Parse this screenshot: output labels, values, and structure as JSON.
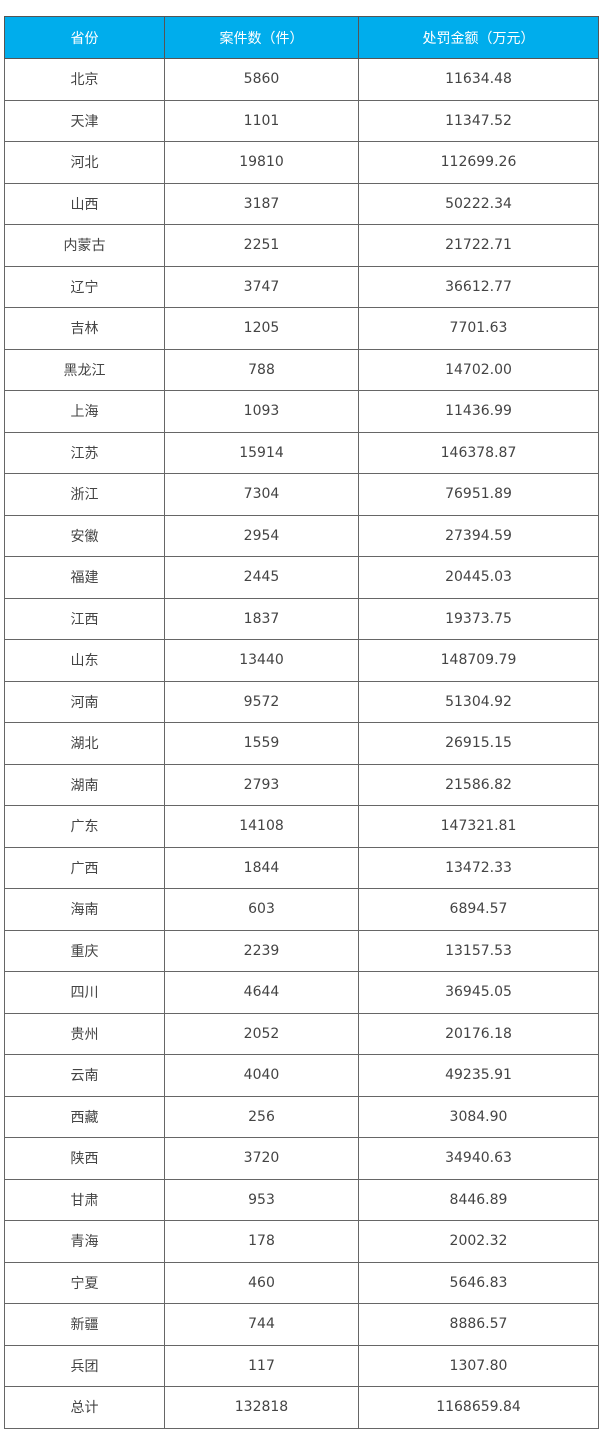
{
  "colors": {
    "header_bg": "#00adec",
    "header_text": "#ffffff",
    "border": "#666666"
  },
  "headers": [
    "省份",
    "案件数（件）",
    "处罚金额（万元）"
  ],
  "rows": [
    [
      "北京",
      "5860",
      "11634.48"
    ],
    [
      "天津",
      "1101",
      "11347.52"
    ],
    [
      "河北",
      "19810",
      "112699.26"
    ],
    [
      "山西",
      "3187",
      "50222.34"
    ],
    [
      "内蒙古",
      "2251",
      "21722.71"
    ],
    [
      "辽宁",
      "3747",
      "36612.77"
    ],
    [
      "吉林",
      "1205",
      "7701.63"
    ],
    [
      "黑龙江",
      "788",
      "14702.00"
    ],
    [
      "上海",
      "1093",
      "11436.99"
    ],
    [
      "江苏",
      "15914",
      "146378.87"
    ],
    [
      "浙江",
      "7304",
      "76951.89"
    ],
    [
      "安徽",
      "2954",
      "27394.59"
    ],
    [
      "福建",
      "2445",
      "20445.03"
    ],
    [
      "江西",
      "1837",
      "19373.75"
    ],
    [
      "山东",
      "13440",
      "148709.79"
    ],
    [
      "河南",
      "9572",
      "51304.92"
    ],
    [
      "湖北",
      "1559",
      "26915.15"
    ],
    [
      "湖南",
      "2793",
      "21586.82"
    ],
    [
      "广东",
      "14108",
      "147321.81"
    ],
    [
      "广西",
      "1844",
      "13472.33"
    ],
    [
      "海南",
      "603",
      "6894.57"
    ],
    [
      "重庆",
      "2239",
      "13157.53"
    ],
    [
      "四川",
      "4644",
      "36945.05"
    ],
    [
      "贵州",
      "2052",
      "20176.18"
    ],
    [
      "云南",
      "4040",
      "49235.91"
    ],
    [
      "西藏",
      "256",
      "3084.90"
    ],
    [
      "陕西",
      "3720",
      "34940.63"
    ],
    [
      "甘肃",
      "953",
      "8446.89"
    ],
    [
      "青海",
      "178",
      "2002.32"
    ],
    [
      "宁夏",
      "460",
      "5646.83"
    ],
    [
      "新疆",
      "744",
      "8886.57"
    ],
    [
      "兵团",
      "117",
      "1307.80"
    ],
    [
      "总计",
      "132818",
      "1168659.84"
    ]
  ]
}
